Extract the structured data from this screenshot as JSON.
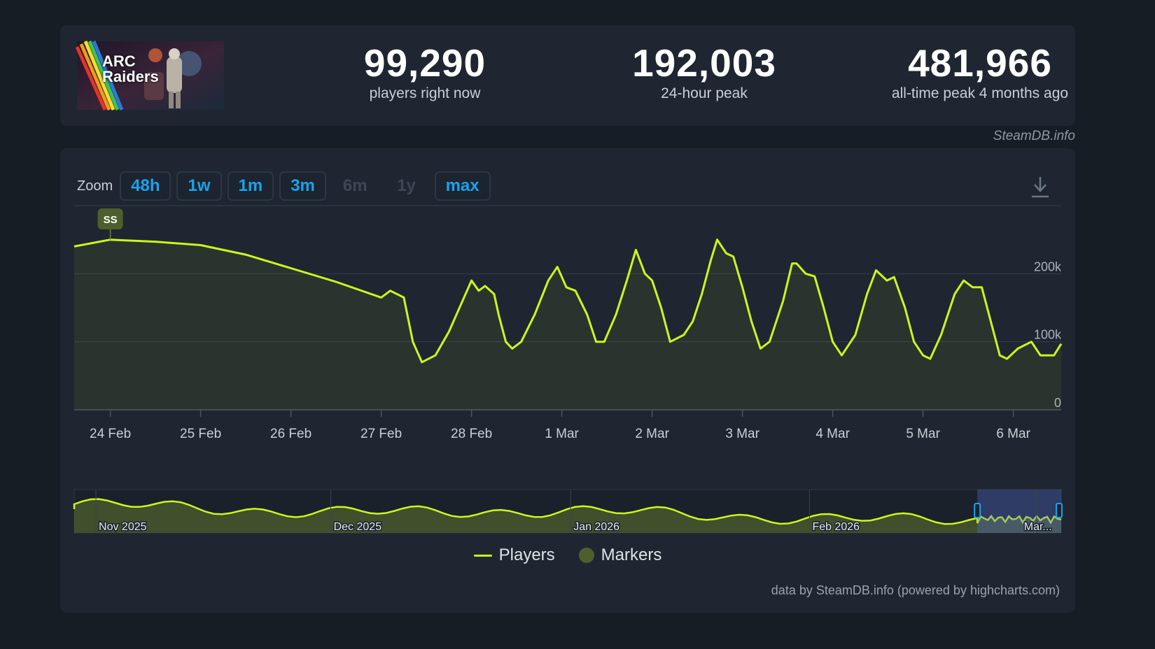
{
  "game": {
    "logo_text_line1": "ARC",
    "logo_text_line2": "Raiders"
  },
  "stats": [
    {
      "value": "99,290",
      "label": "players right now"
    },
    {
      "value": "192,003",
      "label": "24-hour peak"
    },
    {
      "value": "481,966",
      "label": "all-time peak 4 months ago"
    }
  ],
  "credit_top": "SteamDB.info",
  "zoom": {
    "label": "Zoom",
    "buttons": [
      {
        "label": "48h",
        "enabled": true
      },
      {
        "label": "1w",
        "enabled": true
      },
      {
        "label": "1m",
        "enabled": true
      },
      {
        "label": "3m",
        "enabled": true
      },
      {
        "label": "6m",
        "enabled": false
      },
      {
        "label": "1y",
        "enabled": false
      },
      {
        "label": "max",
        "enabled": true
      }
    ]
  },
  "colors": {
    "line": "#ccf71c",
    "marker": "#4e5f2d",
    "accent": "#1aa2ea"
  },
  "icons": {
    "download": "download-icon"
  },
  "legend": {
    "players": "Players",
    "markers": "Markers"
  },
  "credit_bottom": "data by SteamDB.info (powered by highcharts.com)",
  "chart_data": {
    "type": "line",
    "x_tick_labels": [
      "24 Feb",
      "25 Feb",
      "26 Feb",
      "27 Feb",
      "28 Feb",
      "1 Mar",
      "2 Mar",
      "3 Mar",
      "4 Mar",
      "5 Mar",
      "6 Mar"
    ],
    "y_tick_labels": [
      "0",
      "100k",
      "200k"
    ],
    "ylim": [
      0,
      300000
    ],
    "x_range_days": [
      23.6,
      34.53
    ],
    "grid": true,
    "legend_position": "bottom-center",
    "marker": {
      "label": "SS",
      "x_day": 24.0
    },
    "series": [
      {
        "name": "Players",
        "points": [
          [
            23.6,
            240000
          ],
          [
            24.0,
            250000
          ],
          [
            24.5,
            247000
          ],
          [
            25.0,
            242000
          ],
          [
            25.5,
            228000
          ],
          [
            26.0,
            208000
          ],
          [
            26.5,
            188000
          ],
          [
            27.0,
            165000
          ],
          [
            27.1,
            175000
          ],
          [
            27.25,
            165000
          ],
          [
            27.35,
            100000
          ],
          [
            27.45,
            70000
          ],
          [
            27.6,
            80000
          ],
          [
            27.75,
            115000
          ],
          [
            27.9,
            160000
          ],
          [
            28.0,
            190000
          ],
          [
            28.08,
            175000
          ],
          [
            28.15,
            182000
          ],
          [
            28.25,
            170000
          ],
          [
            28.3,
            140000
          ],
          [
            28.38,
            100000
          ],
          [
            28.45,
            90000
          ],
          [
            28.55,
            100000
          ],
          [
            28.7,
            140000
          ],
          [
            28.85,
            190000
          ],
          [
            28.95,
            210000
          ],
          [
            29.05,
            180000
          ],
          [
            29.15,
            175000
          ],
          [
            29.28,
            140000
          ],
          [
            29.38,
            100000
          ],
          [
            29.47,
            100000
          ],
          [
            29.6,
            140000
          ],
          [
            29.72,
            190000
          ],
          [
            29.82,
            235000
          ],
          [
            29.92,
            200000
          ],
          [
            30.0,
            190000
          ],
          [
            30.1,
            150000
          ],
          [
            30.2,
            100000
          ],
          [
            30.35,
            110000
          ],
          [
            30.45,
            130000
          ],
          [
            30.55,
            170000
          ],
          [
            30.65,
            220000
          ],
          [
            30.72,
            250000
          ],
          [
            30.82,
            230000
          ],
          [
            30.9,
            225000
          ],
          [
            31.0,
            180000
          ],
          [
            31.1,
            130000
          ],
          [
            31.2,
            90000
          ],
          [
            31.3,
            100000
          ],
          [
            31.45,
            160000
          ],
          [
            31.55,
            215000
          ],
          [
            31.6,
            215000
          ],
          [
            31.7,
            200000
          ],
          [
            31.8,
            196000
          ],
          [
            31.9,
            150000
          ],
          [
            32.0,
            100000
          ],
          [
            32.1,
            80000
          ],
          [
            32.25,
            110000
          ],
          [
            32.38,
            170000
          ],
          [
            32.48,
            205000
          ],
          [
            32.6,
            190000
          ],
          [
            32.68,
            195000
          ],
          [
            32.8,
            150000
          ],
          [
            32.9,
            100000
          ],
          [
            33.0,
            80000
          ],
          [
            33.08,
            75000
          ],
          [
            33.2,
            110000
          ],
          [
            33.35,
            170000
          ],
          [
            33.45,
            190000
          ],
          [
            33.55,
            180000
          ],
          [
            33.65,
            180000
          ],
          [
            33.75,
            130000
          ],
          [
            33.85,
            80000
          ],
          [
            33.93,
            75000
          ],
          [
            34.05,
            90000
          ],
          [
            34.2,
            100000
          ],
          [
            34.3,
            80000
          ],
          [
            34.45,
            80000
          ],
          [
            34.53,
            97000
          ]
        ]
      }
    ],
    "navigator": {
      "x_labels": [
        "Nov 2025",
        "Dec 2025",
        "Jan 2026",
        "Feb 2026",
        "Mar..."
      ]
    }
  }
}
